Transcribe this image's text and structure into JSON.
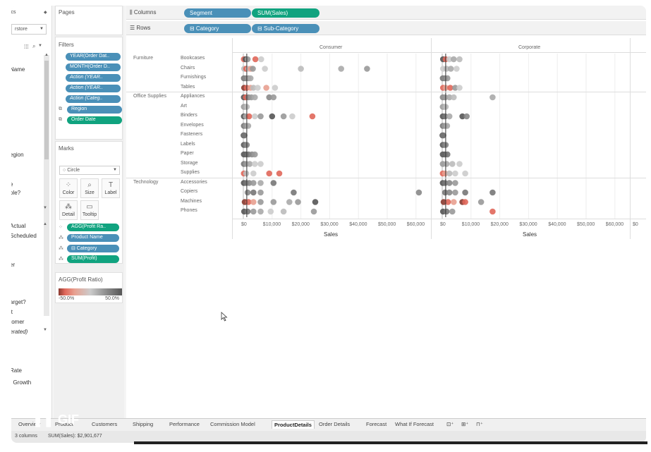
{
  "left_pane": {
    "top_selector_label": "ics",
    "datasource": "rstore",
    "items": [
      {
        "label": "Name",
        "italic": false
      },
      {
        "label": "egion",
        "italic": false
      },
      {
        "label": "e",
        "italic": false
      },
      {
        "label": "ole?",
        "italic": false
      },
      {
        "label": "Actual",
        "italic": false
      },
      {
        "label": "Scheduled",
        "italic": false
      },
      {
        "label": "er",
        "italic": false
      },
      {
        "label": "arget?",
        "italic": false
      },
      {
        "label": "it",
        "italic": false
      },
      {
        "label": "tomer",
        "italic": false
      },
      {
        "label": "erated)",
        "italic": true
      },
      {
        "label": "Rate",
        "italic": false
      },
      {
        "label": ". Growth",
        "italic": false
      }
    ]
  },
  "pages_card": {
    "title": "Pages"
  },
  "filters_card": {
    "title": "Filters",
    "pills": [
      {
        "label": "YEAR(Order Dat..",
        "color": "blue",
        "italic": false
      },
      {
        "label": "MONTH(Order D..",
        "color": "blue",
        "italic": false
      },
      {
        "label": "Action (YEAR..",
        "color": "blue",
        "italic": true
      },
      {
        "label": "Action (YEAR..",
        "color": "blue",
        "italic": true
      },
      {
        "label": "Action (Categ..",
        "color": "blue",
        "italic": true
      },
      {
        "label": "Region",
        "color": "blue",
        "italic": false
      },
      {
        "label": "Order Date",
        "color": "green",
        "italic": false
      }
    ]
  },
  "marks_card": {
    "title": "Marks",
    "mark_type": "Circle",
    "buttons": [
      "Color",
      "Size",
      "Label",
      "Detail",
      "Tooltip"
    ],
    "fields": [
      {
        "label": "AGG(Profit Ra..",
        "color": "green"
      },
      {
        "label": "Product Name",
        "color": "blue"
      },
      {
        "label": "⊟ Category",
        "color": "blue"
      },
      {
        "label": "SUM(Profit)",
        "color": "green"
      }
    ]
  },
  "legend_card": {
    "title": "AGG(Profit Ratio)",
    "min_label": "-50.0%",
    "max_label": "50.0%"
  },
  "columns_shelf": {
    "label": "Columns",
    "pills": [
      "Segment",
      "SUM(Sales)"
    ]
  },
  "rows_shelf": {
    "label": "Rows",
    "pills": [
      "⊟ Category",
      "⊟ Sub-Category"
    ]
  },
  "chart_data": {
    "type": "scatter",
    "panes": [
      "Consumer",
      "Corporate"
    ],
    "categories": [
      {
        "name": "Furniture",
        "subcategories": [
          "Bookcases",
          "Chairs",
          "Furnishings",
          "Tables"
        ]
      },
      {
        "name": "Office Supplies",
        "subcategories": [
          "Appliances",
          "Art",
          "Binders",
          "Envelopes",
          "Fasteners",
          "Labels",
          "Paper",
          "Storage",
          "Supplies"
        ]
      },
      {
        "name": "Technology",
        "subcategories": [
          "Accessories",
          "Copiers",
          "Machines",
          "Phones"
        ]
      }
    ],
    "xlabel": "Sales",
    "x_ticks": [
      "$0",
      "$10,000",
      "$20,000",
      "$30,000",
      "$40,000",
      "$50,000",
      "$60,000"
    ],
    "xlim": [
      0,
      65000
    ],
    "color_legend": "AGG(Profit Ratio)",
    "points": {
      "Consumer": {
        "Bookcases": [
          [
            200,
            "#e0675a"
          ],
          [
            800,
            "#555"
          ],
          [
            1500,
            "#999"
          ],
          [
            4200,
            "#e0675a"
          ],
          [
            6200,
            "#ccc"
          ]
        ],
        "Chairs": [
          [
            300,
            "#bbb"
          ],
          [
            1000,
            "#e0675a"
          ],
          [
            1800,
            "#ccc"
          ],
          [
            2600,
            "#e8a090"
          ],
          [
            3300,
            "#999"
          ],
          [
            7500,
            "#ccc"
          ],
          [
            20000,
            "#bbb"
          ],
          [
            34000,
            "#aaa"
          ],
          [
            43000,
            "#999"
          ]
        ],
        "Furnishings": [
          [
            200,
            "#777"
          ],
          [
            900,
            "#888"
          ],
          [
            1800,
            "#999"
          ],
          [
            2500,
            "#aaa"
          ]
        ],
        "Tables": [
          [
            300,
            "#8a3a30"
          ],
          [
            1200,
            "#e0675a"
          ],
          [
            2500,
            "#e8a090"
          ],
          [
            3500,
            "#bbb"
          ],
          [
            5000,
            "#ccc"
          ],
          [
            8000,
            "#e8a090"
          ],
          [
            11000,
            "#ccc"
          ]
        ],
        "Appliances": [
          [
            200,
            "#555"
          ],
          [
            900,
            "#e0675a"
          ],
          [
            1800,
            "#888"
          ],
          [
            2800,
            "#999"
          ],
          [
            4000,
            "#aaa"
          ],
          [
            9000,
            "#888"
          ],
          [
            10500,
            "#999"
          ]
        ],
        "Art": [
          [
            200,
            "#999"
          ],
          [
            700,
            "#aaa"
          ],
          [
            1200,
            "#bbb"
          ]
        ],
        "Binders": [
          [
            200,
            "#555"
          ],
          [
            900,
            "#aaa"
          ],
          [
            2000,
            "#e0675a"
          ],
          [
            4000,
            "#ccc"
          ],
          [
            6000,
            "#999"
          ],
          [
            10000,
            "#555"
          ],
          [
            14000,
            "#999"
          ],
          [
            17000,
            "#ccc"
          ],
          [
            24000,
            "#e0675a"
          ]
        ],
        "Envelopes": [
          [
            200,
            "#777"
          ],
          [
            900,
            "#999"
          ],
          [
            1700,
            "#aaa"
          ]
        ],
        "Fasteners": [
          [
            100,
            "#555"
          ],
          [
            400,
            "#777"
          ]
        ],
        "Labels": [
          [
            200,
            "#555"
          ],
          [
            700,
            "#777"
          ],
          [
            1200,
            "#888"
          ]
        ],
        "Paper": [
          [
            200,
            "#555"
          ],
          [
            900,
            "#666"
          ],
          [
            1800,
            "#777"
          ],
          [
            3000,
            "#888"
          ],
          [
            4000,
            "#999"
          ]
        ],
        "Storage": [
          [
            200,
            "#777"
          ],
          [
            1000,
            "#999"
          ],
          [
            2200,
            "#aaa"
          ],
          [
            4000,
            "#ccc"
          ],
          [
            6000,
            "#ccc"
          ]
        ],
        "Supplies": [
          [
            200,
            "#e0675a"
          ],
          [
            1000,
            "#bbb"
          ],
          [
            3500,
            "#ccc"
          ],
          [
            9000,
            "#e0675a"
          ],
          [
            12500,
            "#e0675a"
          ]
        ],
        "Accessories": [
          [
            200,
            "#555"
          ],
          [
            1000,
            "#777"
          ],
          [
            2000,
            "#888"
          ],
          [
            3500,
            "#999"
          ],
          [
            6000,
            "#aaa"
          ],
          [
            10500,
            "#777"
          ]
        ],
        "Copiers": [
          [
            1500,
            "#888"
          ],
          [
            3500,
            "#777"
          ],
          [
            6000,
            "#999"
          ],
          [
            17500,
            "#777"
          ],
          [
            61000,
            "#888"
          ]
        ],
        "Machines": [
          [
            500,
            "#8a3a30"
          ],
          [
            1800,
            "#e0675a"
          ],
          [
            3500,
            "#e8a090"
          ],
          [
            6000,
            "#999"
          ],
          [
            10500,
            "#999"
          ],
          [
            16000,
            "#aaa"
          ],
          [
            19000,
            "#999"
          ],
          [
            25000,
            "#555"
          ]
        ],
        "Phones": [
          [
            300,
            "#555"
          ],
          [
            1500,
            "#777"
          ],
          [
            3500,
            "#999"
          ],
          [
            6000,
            "#aaa"
          ],
          [
            9500,
            "#ccc"
          ],
          [
            14000,
            "#bbb"
          ],
          [
            24500,
            "#999"
          ]
        ]
      },
      "Corporate": {
        "Bookcases": [
          [
            300,
            "#555"
          ],
          [
            1200,
            "#e0675a"
          ],
          [
            2500,
            "#ccc"
          ],
          [
            4000,
            "#aaa"
          ],
          [
            6000,
            "#bbb"
          ]
        ],
        "Chairs": [
          [
            300,
            "#ccc"
          ],
          [
            1500,
            "#bbb"
          ],
          [
            3000,
            "#aaa"
          ],
          [
            5000,
            "#ccc"
          ]
        ],
        "Furnishings": [
          [
            200,
            "#777"
          ],
          [
            900,
            "#888"
          ],
          [
            1800,
            "#999"
          ]
        ],
        "Tables": [
          [
            300,
            "#e0675a"
          ],
          [
            1200,
            "#e8a090"
          ],
          [
            2800,
            "#e0675a"
          ],
          [
            4500,
            "#999"
          ],
          [
            6000,
            "#ccc"
          ]
        ],
        "Appliances": [
          [
            200,
            "#888"
          ],
          [
            1000,
            "#999"
          ],
          [
            2500,
            "#aaa"
          ],
          [
            4000,
            "#bbb"
          ],
          [
            17500,
            "#aaa"
          ]
        ],
        "Art": [
          [
            200,
            "#999"
          ],
          [
            700,
            "#aaa"
          ],
          [
            1200,
            "#bbb"
          ]
        ],
        "Binders": [
          [
            200,
            "#555"
          ],
          [
            1000,
            "#777"
          ],
          [
            2500,
            "#aaa"
          ],
          [
            7000,
            "#555"
          ],
          [
            8500,
            "#888"
          ]
        ],
        "Envelopes": [
          [
            200,
            "#777"
          ],
          [
            900,
            "#999"
          ],
          [
            1700,
            "#aaa"
          ]
        ],
        "Fasteners": [
          [
            100,
            "#555"
          ],
          [
            400,
            "#777"
          ]
        ],
        "Labels": [
          [
            200,
            "#555"
          ],
          [
            700,
            "#777"
          ],
          [
            1200,
            "#888"
          ]
        ],
        "Paper": [
          [
            200,
            "#555"
          ],
          [
            900,
            "#666"
          ],
          [
            1800,
            "#777"
          ]
        ],
        "Storage": [
          [
            200,
            "#999"
          ],
          [
            1500,
            "#aaa"
          ],
          [
            3500,
            "#bbb"
          ],
          [
            6000,
            "#ccc"
          ]
        ],
        "Supplies": [
          [
            200,
            "#e0675a"
          ],
          [
            1000,
            "#e8a090"
          ],
          [
            2500,
            "#bbb"
          ],
          [
            4500,
            "#ccc"
          ],
          [
            8000,
            "#ccc"
          ]
        ],
        "Accessories": [
          [
            200,
            "#555"
          ],
          [
            1000,
            "#777"
          ],
          [
            2500,
            "#888"
          ],
          [
            4500,
            "#999"
          ]
        ],
        "Copiers": [
          [
            1000,
            "#777"
          ],
          [
            2500,
            "#888"
          ],
          [
            4500,
            "#999"
          ],
          [
            8000,
            "#777"
          ],
          [
            17500,
            "#777"
          ]
        ],
        "Machines": [
          [
            500,
            "#8a3a30"
          ],
          [
            2000,
            "#e0675a"
          ],
          [
            4000,
            "#e8a090"
          ],
          [
            7000,
            "#8a3a30"
          ],
          [
            8000,
            "#e0675a"
          ],
          [
            13500,
            "#999"
          ]
        ],
        "Phones": [
          [
            300,
            "#555"
          ],
          [
            1500,
            "#777"
          ],
          [
            3500,
            "#999"
          ],
          [
            17500,
            "#e0675a"
          ]
        ]
      }
    }
  },
  "sheet_tabs": [
    "Overview",
    "Product",
    "Customers",
    "Shipping",
    "Performance",
    "Commission Model",
    "ProductDetails",
    "Order Details",
    "Forecast",
    "What If Forecast"
  ],
  "active_tab": "ProductDetails",
  "status": {
    "columns_text": "3 columns",
    "sum_text": "SUM(Sales): $2,901,677"
  },
  "gif_badge": {
    "label": "GIF"
  },
  "colors": {
    "blue_pill": "#4a90b8",
    "green_pill": "#10a37f",
    "negative": "#e0675a",
    "positive": "#555555"
  }
}
